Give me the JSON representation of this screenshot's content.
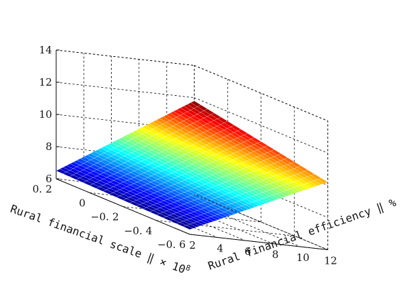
{
  "chart_data": {
    "type": "surface",
    "x_axis": {
      "label": "Rural financial efficiency ‖ %",
      "ticks": [
        2,
        4,
        6,
        8,
        10,
        12
      ],
      "tick_labels": [
        "2",
        "4",
        "6",
        "8",
        "10",
        "12"
      ],
      "range": [
        2,
        12
      ]
    },
    "y_axis": {
      "label": "Rural financial scale ‖ × 10",
      "label_exponent": "8",
      "ticks": [
        0.2,
        0,
        -0.2,
        -0.4,
        -0.6
      ],
      "tick_labels": [
        "0. 2",
        "0",
        "−0. 2",
        "−0. 4",
        "−0. 6"
      ],
      "range": [
        -0.6,
        0.2
      ]
    },
    "z_axis": {
      "label": "",
      "ticks": [
        6,
        8,
        10,
        12,
        14
      ],
      "tick_labels": [
        "6",
        "8",
        "10",
        "12",
        "14"
      ],
      "range": [
        6,
        14
      ]
    },
    "grid": true,
    "colormap": "jet",
    "surface": {
      "x_range": [
        2,
        12
      ],
      "y_range": [
        -0.6,
        0.2
      ],
      "corners": [
        {
          "x": 2,
          "y": 0.2,
          "z": 6.5
        },
        {
          "x": 2,
          "y": -0.6,
          "z": 6.3
        },
        {
          "x": 12,
          "y": -0.6,
          "z": 10.2
        },
        {
          "x": 12,
          "y": 0.2,
          "z": 11.8
        }
      ],
      "z_min": 6.3,
      "z_max": 11.8
    }
  }
}
